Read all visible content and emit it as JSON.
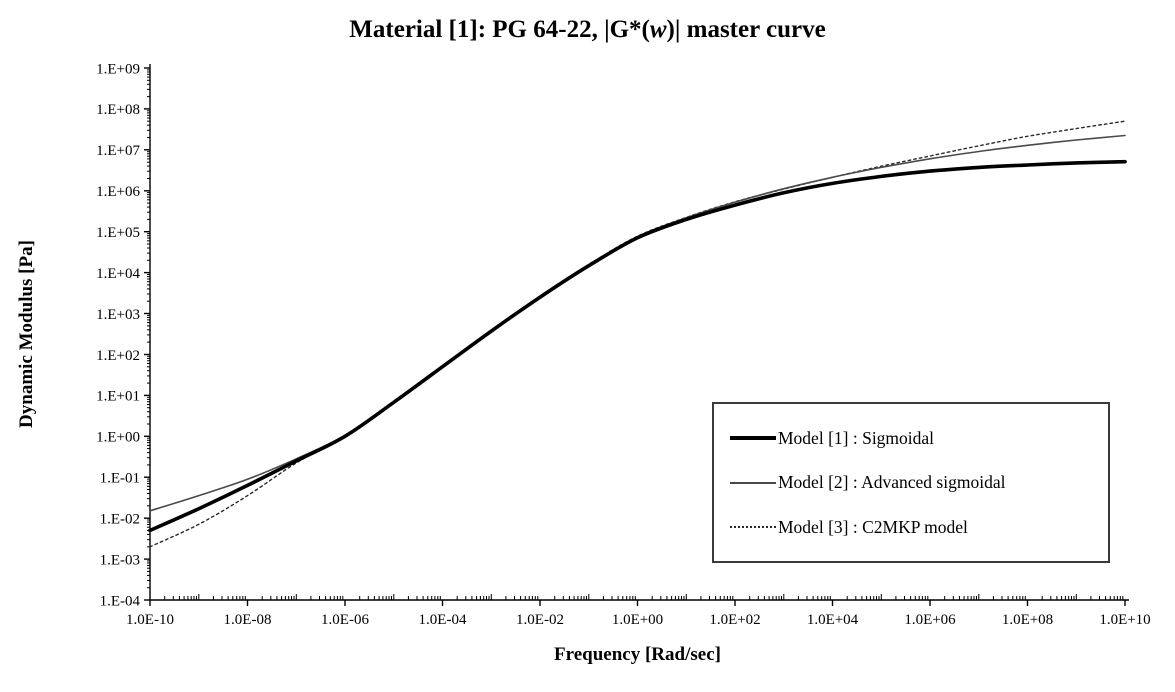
{
  "title": {
    "prefix": "Material [1]: PG 64-22, |G*(",
    "italic_var": "w",
    "suffix": ")| master curve"
  },
  "chart_data": {
    "type": "line",
    "title": "Material [1]: PG 64-22, |G*(w)| master curve",
    "xlabel": "Frequency [Rad/sec]",
    "ylabel": "Dynamic Modulus [Pa]",
    "x_scale": "log",
    "y_scale": "log",
    "grid": "off",
    "legend_position": "inside lower right",
    "x_range_exp": [
      -10,
      10
    ],
    "y_range_exp": [
      -4,
      9
    ],
    "x_tick_labels": [
      "1.0E-10",
      "1.0E-08",
      "1.0E-06",
      "1.0E-04",
      "1.0E-02",
      "1.0E+00",
      "1.0E+02",
      "1.0E+04",
      "1.0E+06",
      "1.0E+08",
      "1.0E+10"
    ],
    "x_tick_exponents": [
      -10,
      -8,
      -6,
      -4,
      -2,
      0,
      2,
      4,
      6,
      8,
      10
    ],
    "y_tick_labels": [
      "1.E-04",
      "1.E-03",
      "1.E-02",
      "1.E-01",
      "1.E+00",
      "1.E+01",
      "1.E+02",
      "1.E+03",
      "1.E+04",
      "1.E+05",
      "1.E+06",
      "1.E+07",
      "1.E+08",
      "1.E+09"
    ],
    "y_tick_exponents": [
      -4,
      -3,
      -2,
      -1,
      0,
      1,
      2,
      3,
      4,
      5,
      6,
      7,
      8,
      9
    ],
    "x_exponents": [
      -10,
      -9,
      -8,
      -7,
      -6,
      -5,
      -4,
      -3,
      -2,
      -1,
      0,
      1,
      2,
      3,
      4,
      5,
      6,
      7,
      8,
      9,
      10
    ],
    "series": [
      {
        "name": "Model [1] : Sigmoidal",
        "style": "solid",
        "width": 3.6,
        "color": "#000000",
        "log10_values": [
          -2.3,
          -1.77,
          -1.2,
          -0.6,
          0.0,
          0.83,
          1.7,
          2.57,
          3.4,
          4.17,
          4.85,
          5.3,
          5.65,
          5.95,
          6.18,
          6.35,
          6.48,
          6.57,
          6.63,
          6.68,
          6.71
        ]
      },
      {
        "name": "Model [2] : Advanced sigmoidal",
        "style": "solid",
        "width": 1.6,
        "color": "#4a4a4a",
        "log10_values": [
          -1.82,
          -1.45,
          -1.05,
          -0.55,
          0.02,
          0.85,
          1.72,
          2.58,
          3.42,
          4.19,
          4.88,
          5.34,
          5.72,
          6.05,
          6.33,
          6.57,
          6.78,
          6.96,
          7.11,
          7.24,
          7.35
        ]
      },
      {
        "name": "Model [3] : C2MKP model",
        "style": "dotted",
        "width": 1.4,
        "color": "#2a2a2a",
        "log10_values": [
          -2.7,
          -2.15,
          -1.45,
          -0.65,
          0.02,
          0.86,
          1.73,
          2.59,
          3.43,
          4.2,
          4.89,
          5.35,
          5.73,
          6.04,
          6.33,
          6.6,
          6.85,
          7.1,
          7.33,
          7.52,
          7.7
        ]
      }
    ]
  }
}
